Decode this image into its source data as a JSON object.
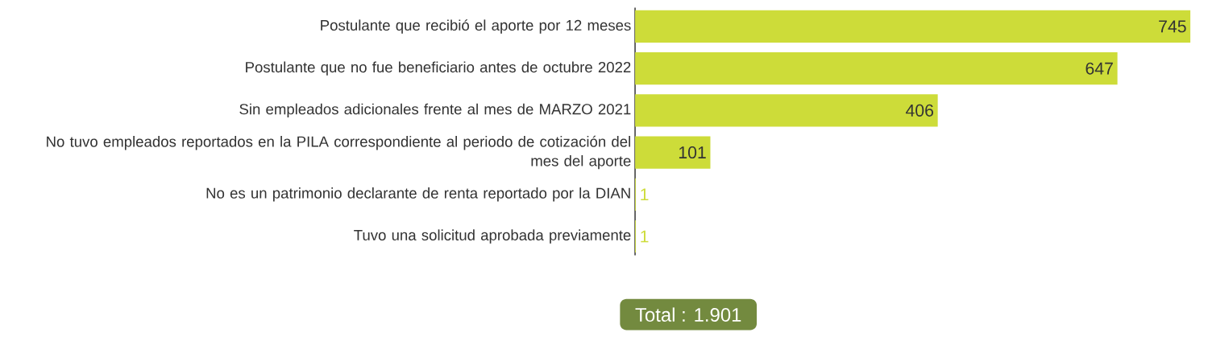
{
  "chart_data": {
    "type": "bar",
    "orientation": "horizontal",
    "categories": [
      "Postulante que recibió el aporte por 12 meses",
      "Postulante que no fue beneficiario antes de octubre 2022",
      "Sin empleados adicionales frente al mes de MARZO 2021",
      "No tuvo empleados reportados en la PILA correspondiente al periodo de cotización del mes del aporte",
      "No es un patrimonio declarante de renta reportado por la DIAN",
      "Tuvo una solicitud aprobada previamente"
    ],
    "values": [
      745,
      647,
      406,
      101,
      1,
      1
    ],
    "color": "#cddc39",
    "tick_labels": "y",
    "data_labels": true,
    "annotations": [
      "Total : 1.901"
    ]
  }
}
